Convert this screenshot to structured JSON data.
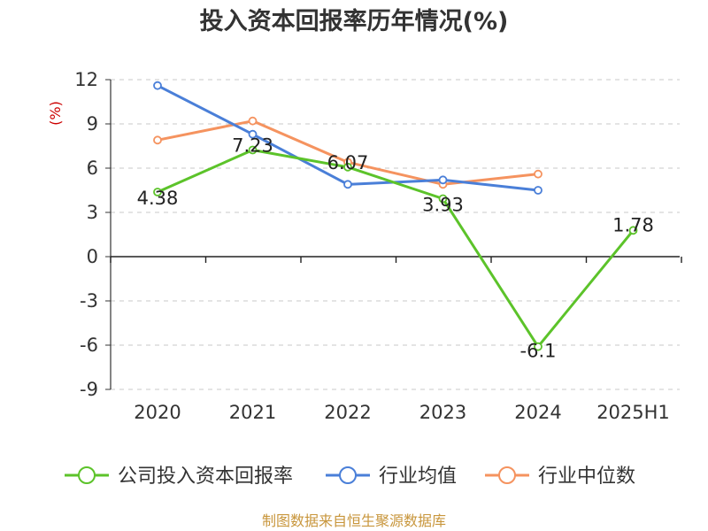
{
  "title": "投入资本回报率历年情况(%)",
  "source": "制图数据来自恒生聚源数据库",
  "chart_data": {
    "type": "line",
    "title": "投入资本回报率历年情况(%)",
    "ylabel": "(%)",
    "xlabel": "",
    "categories": [
      "2020",
      "2021",
      "2022",
      "2023",
      "2024",
      "2025H1"
    ],
    "ylim": [
      -9,
      12
    ],
    "yticks": [
      12,
      9,
      6,
      3,
      0,
      -3,
      -6,
      -9
    ],
    "grid": true,
    "legend_position": "bottom",
    "series": [
      {
        "name": "公司投入资本回报率",
        "color": "#5cc32a",
        "values": [
          4.38,
          7.23,
          6.07,
          3.93,
          -6.1,
          1.78
        ],
        "labels": [
          "4.38",
          "7.23",
          "6.07",
          "3.93",
          "-6.1",
          "1.78"
        ]
      },
      {
        "name": "行业均值",
        "color": "#4a7fd8",
        "values": [
          11.6,
          8.3,
          4.9,
          5.2,
          4.5,
          null
        ]
      },
      {
        "name": "行业中位数",
        "color": "#f5935f",
        "values": [
          7.9,
          9.2,
          6.4,
          4.9,
          5.6,
          null
        ]
      }
    ]
  }
}
